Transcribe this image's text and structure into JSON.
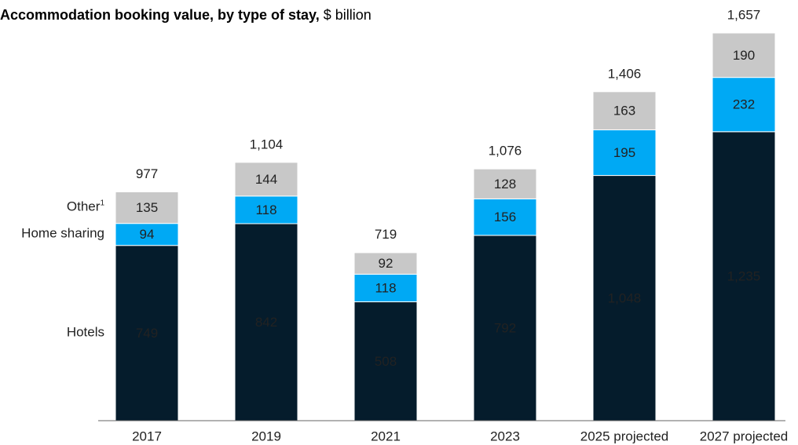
{
  "chart_data": {
    "type": "stacked_bar",
    "title": "Accommodation booking value, by type of stay,",
    "title_unit": "$ billion",
    "categories": [
      "2017",
      "2019",
      "2021",
      "2023",
      "2025 projected",
      "2027 projected"
    ],
    "series": [
      {
        "name": "Hotels",
        "color": "#051c2c",
        "values": [
          749,
          842,
          508,
          792,
          1048,
          1235
        ],
        "value_labels": [
          "749",
          "842",
          "508",
          "792",
          "1,048",
          "1,235"
        ]
      },
      {
        "name": "Home sharing",
        "color": "#00a9f4",
        "values": [
          94,
          118,
          118,
          156,
          195,
          232
        ]
      },
      {
        "name": "Other",
        "footnote_marker": "1",
        "color": "#c8c8c8",
        "values": [
          135,
          144,
          92,
          128,
          163,
          190
        ]
      }
    ],
    "totals": [
      977,
      1104,
      719,
      1076,
      1406,
      1657
    ],
    "total_labels": [
      "977",
      "1,104",
      "719",
      "1,076",
      "1,406",
      "1,657"
    ]
  }
}
